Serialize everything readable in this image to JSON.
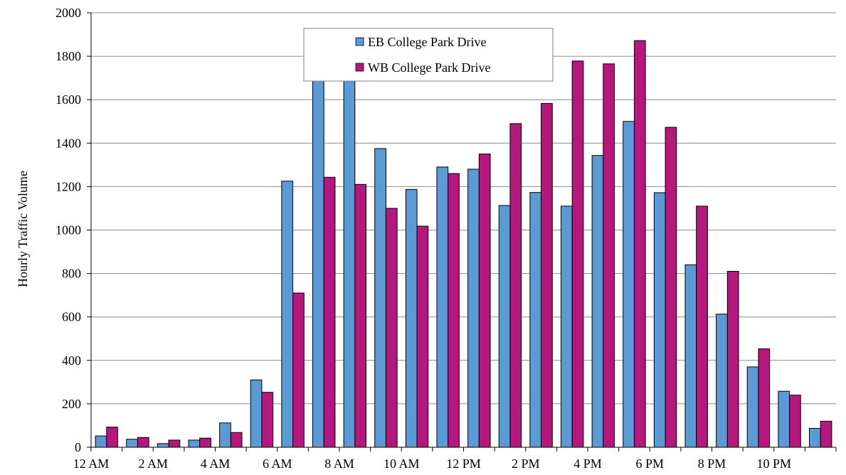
{
  "chart_data": {
    "type": "bar",
    "title": "",
    "xlabel": "",
    "ylabel": "Hourly Traffic Volume",
    "ylim": [
      0,
      2000
    ],
    "yticks": [
      0,
      200,
      400,
      600,
      800,
      1000,
      1200,
      1400,
      1600,
      1800,
      2000
    ],
    "grid": "horizontal",
    "legend_position": "top-center",
    "categories": [
      "12 AM",
      "1 AM",
      "2 AM",
      "3 AM",
      "4 AM",
      "5 AM",
      "6 AM",
      "7 AM",
      "8 AM",
      "9 AM",
      "10 AM",
      "11 AM",
      "12 PM",
      "1 PM",
      "2 PM",
      "3 PM",
      "4 PM",
      "5 PM",
      "6 PM",
      "7 PM",
      "8 PM",
      "9 PM",
      "10 PM",
      "11 PM"
    ],
    "x_tick_labels": [
      "12 AM",
      "",
      "2 AM",
      "",
      "4 AM",
      "",
      "6 AM",
      "",
      "8 AM",
      "",
      "10 AM",
      "",
      "12 PM",
      "",
      "2 PM",
      "",
      "4 PM",
      "",
      "6 PM",
      "",
      "8 PM",
      "",
      "10 PM",
      ""
    ],
    "series": [
      {
        "name": "EB College Park Drive",
        "color": "#5b9bd5",
        "values": [
          52,
          37,
          17,
          33,
          112,
          310,
          1225,
          1900,
          1900,
          1375,
          1187,
          1290,
          1280,
          1113,
          1173,
          1110,
          1343,
          1500,
          1172,
          840,
          613,
          370,
          258,
          87
        ]
      },
      {
        "name": "WB College Park Drive",
        "color": "#b5177c",
        "values": [
          93,
          45,
          33,
          42,
          68,
          253,
          710,
          1243,
          1210,
          1100,
          1018,
          1260,
          1350,
          1490,
          1583,
          1778,
          1765,
          1872,
          1473,
          1110,
          810,
          453,
          240,
          120
        ]
      }
    ]
  }
}
